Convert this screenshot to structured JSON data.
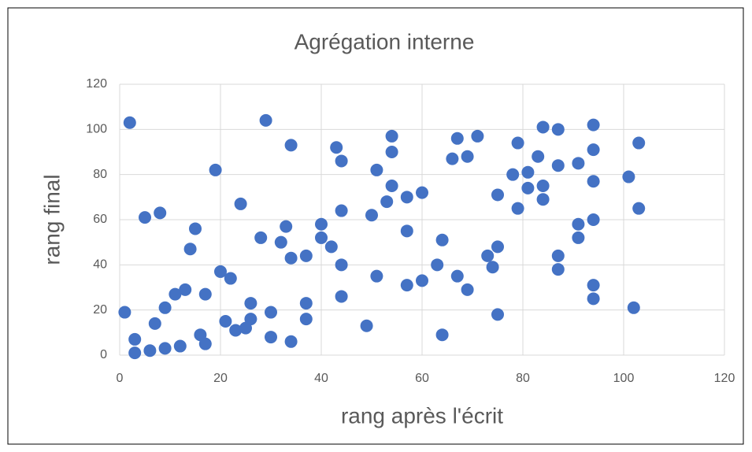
{
  "chart_data": {
    "type": "scatter",
    "title": "Agrégation interne",
    "x_label": "rang après l'écrit",
    "y_label": "rang final",
    "color": "#4472c4",
    "grid": true,
    "xlim": [
      0,
      120
    ],
    "ylim": [
      0,
      120
    ],
    "xticks": [
      0,
      20,
      40,
      60,
      80,
      100,
      120
    ],
    "yticks": [
      0,
      20,
      40,
      60,
      80,
      100,
      120
    ],
    "x": [
      1,
      2,
      3,
      3,
      5,
      6,
      7,
      8,
      9,
      9,
      11,
      12,
      13,
      14,
      15,
      16,
      17,
      17,
      19,
      20,
      21,
      22,
      23,
      24,
      25,
      26,
      26,
      28,
      29,
      30,
      30,
      32,
      33,
      34,
      34,
      34,
      37,
      37,
      37,
      40,
      40,
      42,
      43,
      44,
      44,
      44,
      44,
      49,
      50,
      51,
      51,
      53,
      54,
      54,
      54,
      57,
      57,
      57,
      60,
      60,
      63,
      64,
      64,
      66,
      67,
      67,
      69,
      69,
      71,
      73,
      74,
      75,
      75,
      75,
      78,
      79,
      79,
      81,
      81,
      83,
      84,
      84,
      84,
      87,
      87,
      87,
      87,
      91,
      91,
      91,
      94,
      94,
      94,
      94,
      94,
      94,
      101,
      102,
      103,
      103
    ],
    "values": [
      19,
      103,
      7,
      1,
      61,
      2,
      14,
      63,
      21,
      3,
      27,
      4,
      29,
      47,
      56,
      9,
      27,
      5,
      82,
      37,
      15,
      34,
      11,
      67,
      12,
      23,
      16,
      52,
      104,
      19,
      8,
      50,
      57,
      93,
      43,
      6,
      44,
      23,
      16,
      58,
      52,
      48,
      92,
      86,
      64,
      40,
      26,
      13,
      62,
      82,
      35,
      68,
      97,
      90,
      75,
      70,
      55,
      31,
      72,
      33,
      40,
      51,
      9,
      87,
      96,
      35,
      88,
      29,
      97,
      44,
      39,
      71,
      48,
      18,
      80,
      94,
      65,
      81,
      74,
      88,
      101,
      75,
      69,
      100,
      84,
      44,
      38,
      85,
      58,
      52,
      102,
      91,
      77,
      60,
      31,
      25,
      79,
      21,
      94,
      65
    ]
  }
}
